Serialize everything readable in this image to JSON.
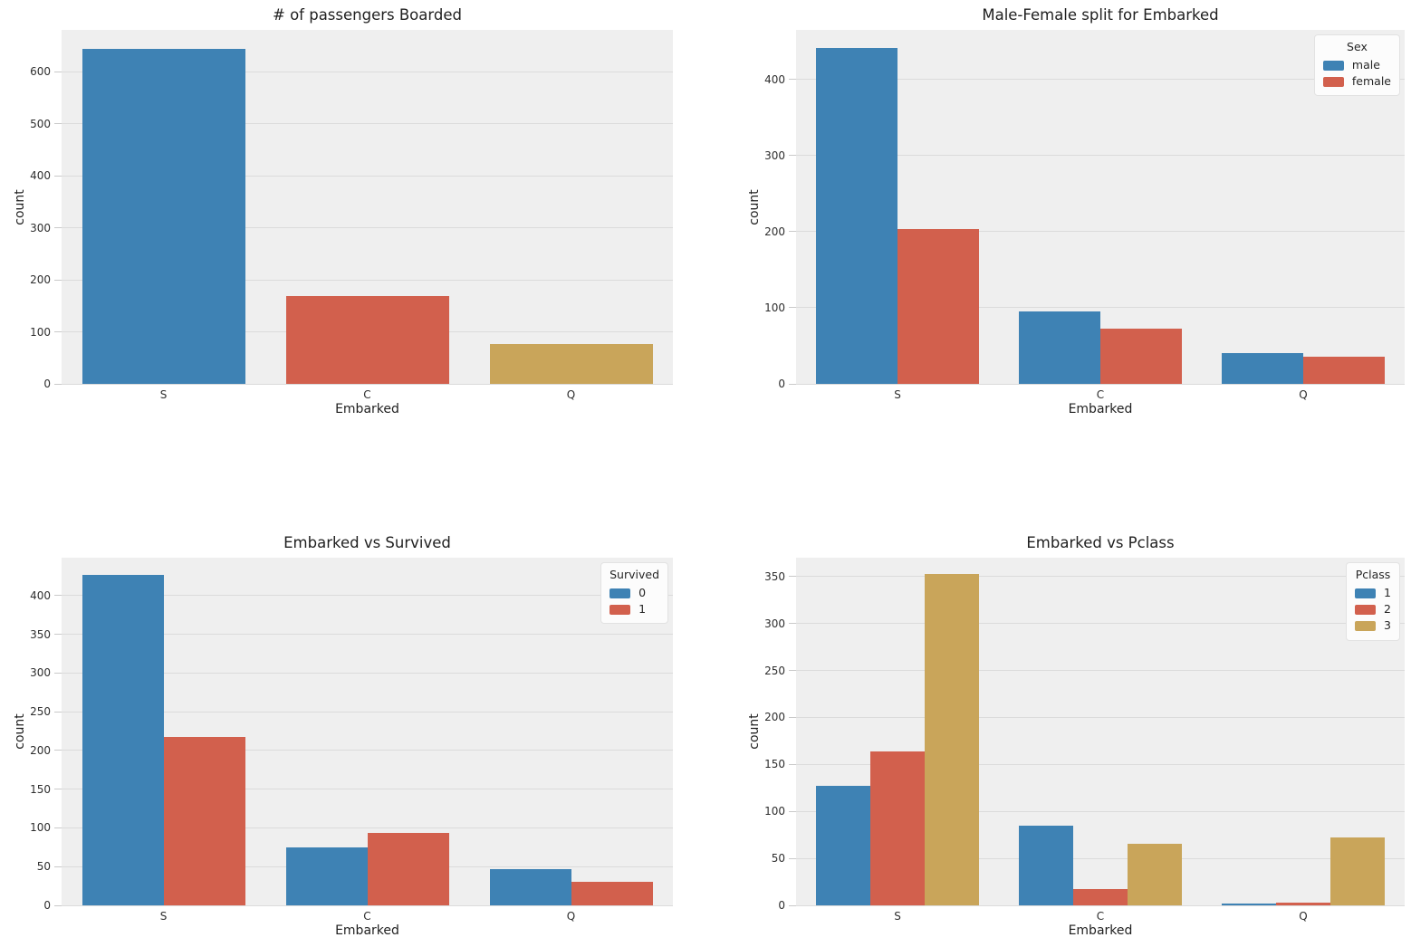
{
  "figure": {
    "background": "#ffffff",
    "axes_background": "#efefef",
    "grid_color": "#dbdbdb"
  },
  "palette": {
    "blue": "#3E82B4",
    "red": "#D2604D",
    "tan": "#C9A55A"
  },
  "chart_data": [
    {
      "type": "bar",
      "title": "# of passengers Boarded",
      "xlabel": "Embarked",
      "ylabel": "count",
      "categories": [
        "S",
        "C",
        "Q"
      ],
      "series": [
        {
          "name": "count",
          "values": [
            644,
            168,
            77
          ],
          "colors": [
            "#3E82B4",
            "#D2604D",
            "#C9A55A"
          ]
        }
      ],
      "ylim": [
        0,
        680
      ],
      "yticks": [
        0,
        100,
        200,
        300,
        400,
        500,
        600
      ],
      "grid": true,
      "legend": null
    },
    {
      "type": "bar",
      "title": "Male-Female split for Embarked",
      "xlabel": "Embarked",
      "ylabel": "count",
      "categories": [
        "S",
        "C",
        "Q"
      ],
      "series": [
        {
          "name": "male",
          "color": "#3E82B4",
          "values": [
            441,
            95,
            41
          ]
        },
        {
          "name": "female",
          "color": "#D2604D",
          "values": [
            203,
            73,
            36
          ]
        }
      ],
      "ylim": [
        0,
        465
      ],
      "yticks": [
        0,
        100,
        200,
        300,
        400
      ],
      "grid": true,
      "legend": {
        "title": "Sex",
        "position": "upper right"
      }
    },
    {
      "type": "bar",
      "title": "Embarked vs Survived",
      "xlabel": "Embarked",
      "ylabel": "count",
      "categories": [
        "S",
        "C",
        "Q"
      ],
      "series": [
        {
          "name": "0",
          "color": "#3E82B4",
          "values": [
            427,
            75,
            47
          ]
        },
        {
          "name": "1",
          "color": "#D2604D",
          "values": [
            217,
            93,
            30
          ]
        }
      ],
      "ylim": [
        0,
        449
      ],
      "yticks": [
        0,
        50,
        100,
        150,
        200,
        250,
        300,
        350,
        400
      ],
      "grid": true,
      "legend": {
        "title": "Survived",
        "position": "upper right"
      }
    },
    {
      "type": "bar",
      "title": "Embarked vs Pclass",
      "xlabel": "Embarked",
      "ylabel": "count",
      "categories": [
        "S",
        "C",
        "Q"
      ],
      "series": [
        {
          "name": "1",
          "color": "#3E82B4",
          "values": [
            127,
            85,
            2
          ]
        },
        {
          "name": "2",
          "color": "#D2604D",
          "values": [
            164,
            17,
            3
          ]
        },
        {
          "name": "3",
          "color": "#C9A55A",
          "values": [
            353,
            66,
            72
          ]
        }
      ],
      "ylim": [
        0,
        370
      ],
      "yticks": [
        0,
        50,
        100,
        150,
        200,
        250,
        300,
        350
      ],
      "grid": true,
      "legend": {
        "title": "Pclass",
        "position": "upper right"
      }
    }
  ]
}
